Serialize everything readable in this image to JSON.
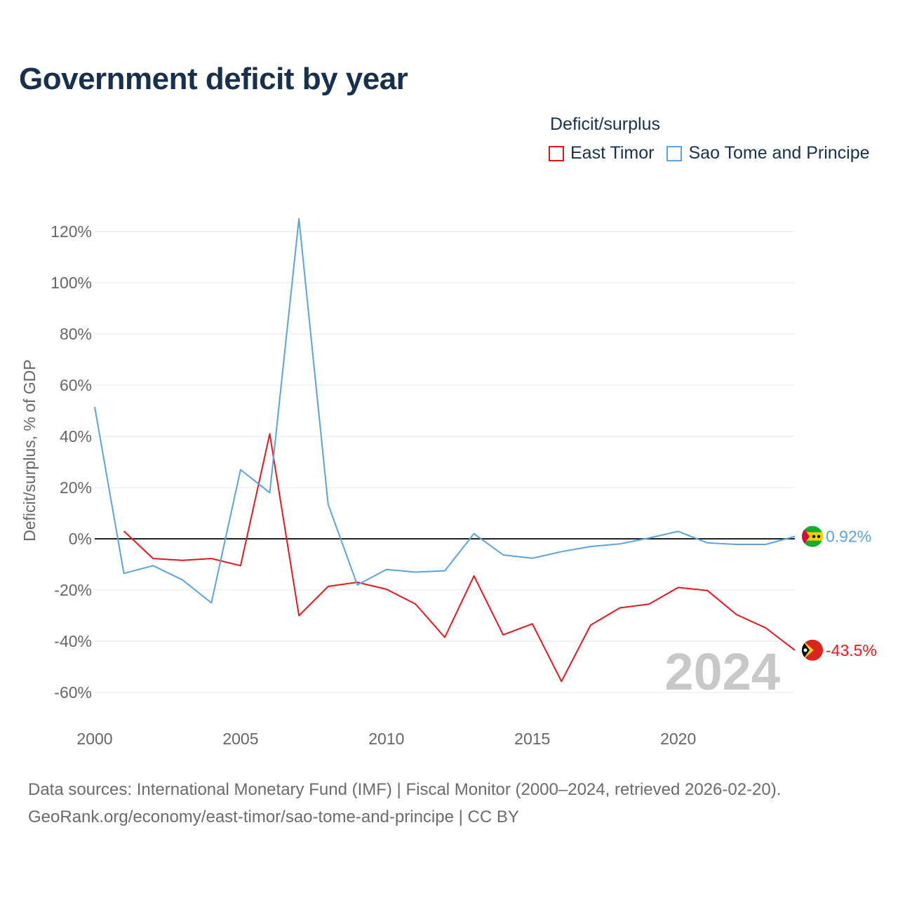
{
  "title": "Government deficit by year",
  "legend": {
    "title": "Deficit/surplus",
    "items": [
      {
        "label": "East Timor",
        "color": "#e8161b"
      },
      {
        "label": "Sao Tome and Principe",
        "color": "#5aa3e2"
      }
    ]
  },
  "footer": {
    "line1": "Data sources: International Monetary Fund (IMF) | Fiscal Monitor (2000–2024, retrieved 2026-02-20).",
    "line2": "GeoRank.org/economy/east-timor/sao-tome-and-principe | CC BY"
  },
  "chart_data": {
    "type": "line",
    "title": "Government deficit by year",
    "xlabel": "",
    "ylabel": "Deficit/surplus, % of GDP",
    "xlim": [
      2000,
      2024
    ],
    "ylim": [
      -70,
      125
    ],
    "x_ticks": [
      2000,
      2005,
      2010,
      2015,
      2020
    ],
    "y_ticks": [
      -60,
      -40,
      -20,
      0,
      20,
      40,
      60,
      80,
      100,
      120
    ],
    "y_tick_labels": [
      "-60%",
      "-40%",
      "-20%",
      "0%",
      "20%",
      "40%",
      "60%",
      "80%",
      "100%",
      "120%"
    ],
    "watermark_year": "2024",
    "series": [
      {
        "name": "East Timor",
        "color": "#e8161b",
        "x": [
          2001,
          2002,
          2003,
          2004,
          2005,
          2006,
          2007,
          2008,
          2009,
          2010,
          2011,
          2012,
          2013,
          2014,
          2015,
          2016,
          2017,
          2018,
          2019,
          2020,
          2021,
          2022,
          2023,
          2024
        ],
        "values": [
          3,
          -7.7,
          -8.4,
          -7.7,
          -10.5,
          41,
          -30,
          -18.6,
          -17,
          -19.7,
          -25.5,
          -38.5,
          -14.5,
          -37.5,
          -33.2,
          -55.7,
          -33.7,
          -27,
          -25.5,
          -19,
          -20.2,
          -29.6,
          -34.8,
          -43.5
        ],
        "end_label": "-43.5%"
      },
      {
        "name": "Sao Tome and Principe",
        "color": "#5aa3e2",
        "x": [
          2000,
          2001,
          2002,
          2003,
          2004,
          2005,
          2006,
          2007,
          2008,
          2009,
          2010,
          2011,
          2012,
          2013,
          2014,
          2015,
          2016,
          2017,
          2018,
          2019,
          2020,
          2021,
          2022,
          2023,
          2024
        ],
        "values": [
          51.5,
          -13.5,
          -10.5,
          -16,
          -25,
          27,
          18,
          125,
          13.5,
          -18,
          -12,
          -13,
          -12.5,
          2,
          -6.3,
          -7.6,
          -5,
          -3,
          -2,
          0.3,
          2.9,
          -1.6,
          -2.2,
          -2.2,
          0.92
        ],
        "end_label": "0.92%"
      }
    ]
  }
}
